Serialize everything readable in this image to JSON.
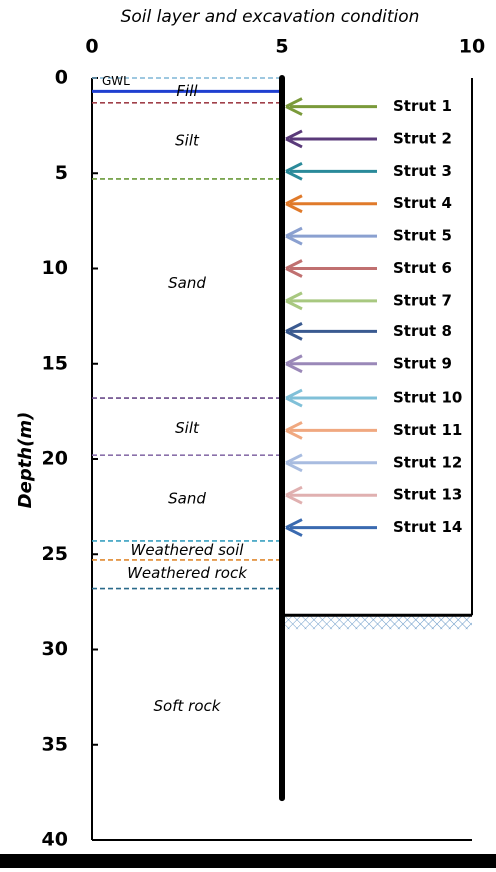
{
  "chart_data": {
    "type": "soil-profile",
    "title": "Soil layer and excavation condition",
    "ylabel": "Depth(m)",
    "xlim": [
      0,
      10
    ],
    "xticks": [
      0,
      5,
      10
    ],
    "ylim": [
      0,
      40
    ],
    "yticks": [
      0,
      5,
      10,
      15,
      20,
      25,
      30,
      35,
      40
    ],
    "wall": {
      "x": 5,
      "depth": 37.8
    },
    "excavation_depth": 28.2,
    "gwl": {
      "label": "GWL",
      "depth": 0.7,
      "color": "#1f3fd0"
    },
    "boundaries": [
      {
        "depth": 0,
        "color": "#7fb6d6"
      },
      {
        "depth": 1.3,
        "color": "#a0404a"
      },
      {
        "depth": 5.3,
        "color": "#6a9a3a"
      },
      {
        "depth": 16.8,
        "color": "#6a4a8a"
      },
      {
        "depth": 19.8,
        "color": "#8a70aa"
      },
      {
        "depth": 24.3,
        "color": "#3aa0c0"
      },
      {
        "depth": 25.3,
        "color": "#e08a30"
      },
      {
        "depth": 26.8,
        "color": "#2a6a8a"
      }
    ],
    "layers": [
      {
        "name": "Fill",
        "depth": 0.7
      },
      {
        "name": "Silt",
        "depth": 3.3
      },
      {
        "name": "Sand",
        "depth": 10.8
      },
      {
        "name": "Silt",
        "depth": 18.4
      },
      {
        "name": "Sand",
        "depth": 22.1
      },
      {
        "name": "Weathered soil",
        "depth": 24.8
      },
      {
        "name": "Weathered rock",
        "depth": 26.0
      },
      {
        "name": "Soft rock",
        "depth": 33.0
      }
    ],
    "series": [
      {
        "name": "Strut 1",
        "color": "#7a9a3a",
        "values": [
          1.5
        ]
      },
      {
        "name": "Strut 2",
        "color": "#5a3a7a",
        "values": [
          3.2
        ]
      },
      {
        "name": "Strut 3",
        "color": "#2a8a9a",
        "values": [
          4.9
        ]
      },
      {
        "name": "Strut 4",
        "color": "#e07a2a",
        "values": [
          6.6
        ]
      },
      {
        "name": "Strut 5",
        "color": "#8aa0d0",
        "values": [
          8.3
        ]
      },
      {
        "name": "Strut 6",
        "color": "#c07070",
        "values": [
          10.0
        ]
      },
      {
        "name": "Strut 7",
        "color": "#a8c880",
        "values": [
          11.7
        ]
      },
      {
        "name": "Strut 8",
        "color": "#3a5a90",
        "values": [
          13.3
        ]
      },
      {
        "name": "Strut 9",
        "color": "#9a88b8",
        "values": [
          15.0
        ]
      },
      {
        "name": "Strut 10",
        "color": "#80c0d8",
        "values": [
          16.8
        ]
      },
      {
        "name": "Strut 11",
        "color": "#f0a880",
        "values": [
          18.5
        ]
      },
      {
        "name": "Strut 12",
        "color": "#a8bce0",
        "values": [
          20.2
        ]
      },
      {
        "name": "Strut 13",
        "color": "#e0b0b0",
        "values": [
          21.9
        ]
      },
      {
        "name": "Strut 14",
        "color": "#3a6ab0",
        "values": [
          23.6
        ]
      }
    ]
  }
}
